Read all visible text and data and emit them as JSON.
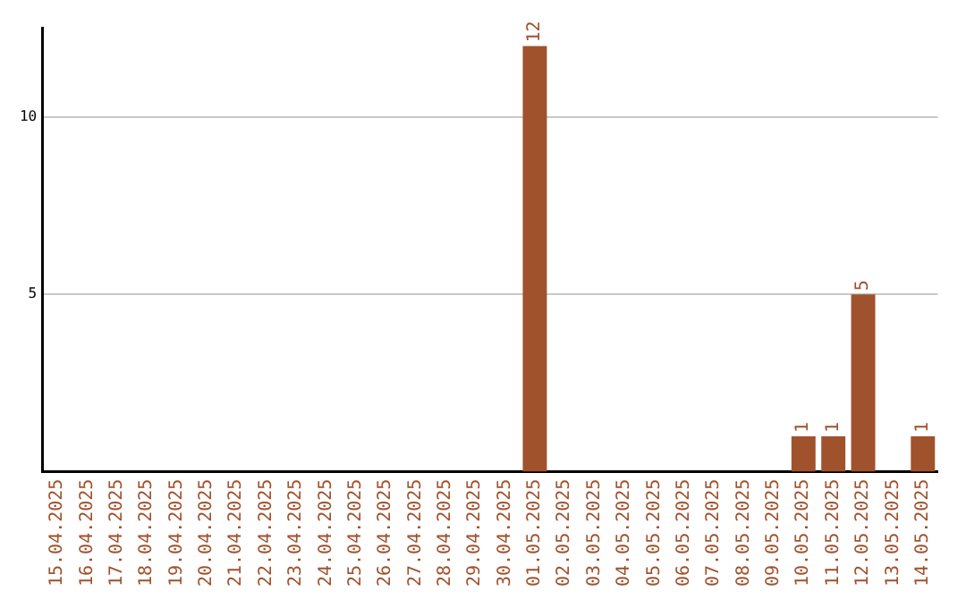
{
  "chart_data": {
    "type": "bar",
    "categories": [
      "15.04.2025",
      "16.04.2025",
      "17.04.2025",
      "18.04.2025",
      "19.04.2025",
      "20.04.2025",
      "21.04.2025",
      "22.04.2025",
      "23.04.2025",
      "24.04.2025",
      "25.04.2025",
      "26.04.2025",
      "27.04.2025",
      "28.04.2025",
      "29.04.2025",
      "30.04.2025",
      "01.05.2025",
      "02.05.2025",
      "03.05.2025",
      "04.05.2025",
      "05.05.2025",
      "06.05.2025",
      "07.05.2025",
      "08.05.2025",
      "09.05.2025",
      "10.05.2025",
      "11.05.2025",
      "12.05.2025",
      "13.05.2025",
      "14.05.2025"
    ],
    "values": [
      0,
      0,
      0,
      0,
      0,
      0,
      0,
      0,
      0,
      0,
      0,
      0,
      0,
      0,
      0,
      0,
      12,
      0,
      0,
      0,
      0,
      0,
      0,
      0,
      0,
      1,
      1,
      5,
      0,
      1
    ],
    "value_labels": [
      null,
      null,
      null,
      null,
      null,
      null,
      null,
      null,
      null,
      null,
      null,
      null,
      null,
      null,
      null,
      null,
      "12",
      null,
      null,
      null,
      null,
      null,
      null,
      null,
      null,
      "1",
      "1",
      "5",
      null,
      "1"
    ],
    "color": "#a0522d",
    "ylim": [
      0,
      12.5
    ],
    "yticks": [
      5,
      10
    ],
    "grid": "y",
    "legend": false
  }
}
